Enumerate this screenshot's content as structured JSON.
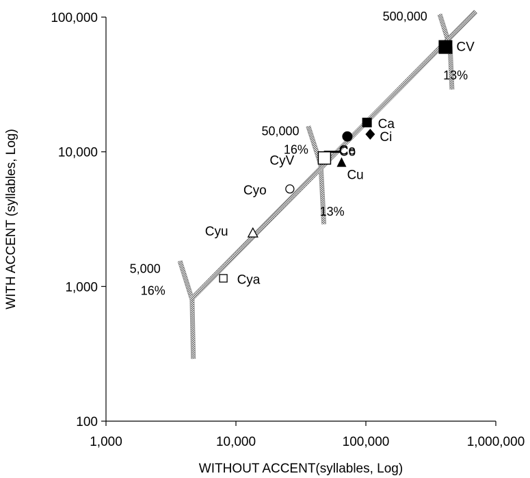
{
  "chart_data": {
    "type": "scatter",
    "title": "",
    "xlabel": "WITHOUT ACCENT(syllables, Log)",
    "ylabel": "WITH ACCENT (syllables, Log)",
    "xscale": "log",
    "yscale": "log",
    "xlim": [
      1000,
      1000000
    ],
    "ylim": [
      100,
      100000
    ],
    "x_ticks": [
      1000,
      10000,
      100000,
      1000000
    ],
    "x_tick_labels": [
      "1,000",
      "10,000",
      "100,000",
      "1,000,000"
    ],
    "y_ticks": [
      100,
      1000,
      10000,
      100000
    ],
    "y_tick_labels": [
      "100",
      "1,000",
      "10,000",
      "100,000"
    ],
    "grid": false,
    "legend": "none",
    "points": [
      {
        "label": "CV",
        "x": 410000,
        "y": 60000,
        "marker": "square-filled-large"
      },
      {
        "label": "Ca",
        "x": 102000,
        "y": 16500,
        "marker": "square-filled"
      },
      {
        "label": "Co",
        "x": 72000,
        "y": 13000,
        "marker": "circle-filled"
      },
      {
        "label": "Ci",
        "x": 108000,
        "y": 13500,
        "marker": "diamond-filled"
      },
      {
        "label": "Ce",
        "x": 55000,
        "y": 10000,
        "marker": "dash"
      },
      {
        "label": "CyV",
        "x": 48000,
        "y": 9000,
        "marker": "square-open-large"
      },
      {
        "label": "Cu",
        "x": 65000,
        "y": 8300,
        "marker": "triangle-filled"
      },
      {
        "label": "Cyo",
        "x": 26000,
        "y": 5300,
        "marker": "circle-open"
      },
      {
        "label": "Cyu",
        "x": 13500,
        "y": 2500,
        "marker": "triangle-open"
      },
      {
        "label": "Cya",
        "x": 8000,
        "y": 1150,
        "marker": "square-open"
      }
    ],
    "trend_line": {
      "x": [
        4500,
        700000
      ],
      "y": [
        800,
        110000
      ]
    },
    "contour_lines": [
      {
        "label": "5,000",
        "x": [
          3700,
          4600,
          4700
        ],
        "y": [
          1550,
          800,
          290
        ]
      },
      {
        "label": "50,000",
        "x": [
          36000,
          45000,
          47500
        ],
        "y": [
          15500,
          8000,
          2900
        ]
      },
      {
        "label": "500,000",
        "x": [
          370000,
          445000,
          460000
        ],
        "y": [
          105000,
          60000,
          29000
        ]
      }
    ],
    "annotations": [
      {
        "text": "5,000",
        "x": 2000,
        "y": 1350
      },
      {
        "text": "16%",
        "x": 2300,
        "y": 930
      },
      {
        "text": "50,000",
        "x": 22000,
        "y": 14200
      },
      {
        "text": "16%",
        "x": 29000,
        "y": 10400
      },
      {
        "text": "13%",
        "x": 55000,
        "y": 3600
      },
      {
        "text": "500,000",
        "x": 200000,
        "y": 101000
      },
      {
        "text": "13%",
        "x": 490000,
        "y": 37000
      }
    ]
  }
}
